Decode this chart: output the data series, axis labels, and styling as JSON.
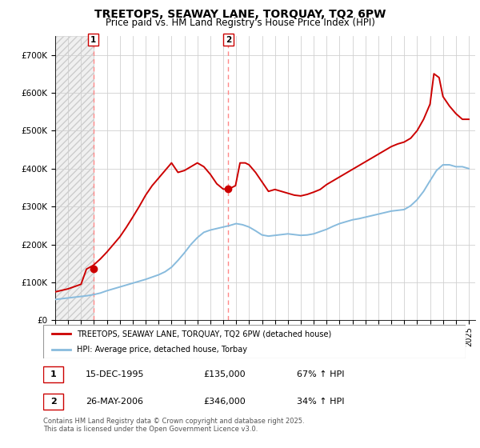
{
  "title": "TREETOPS, SEAWAY LANE, TORQUAY, TQ2 6PW",
  "subtitle": "Price paid vs. HM Land Registry's House Price Index (HPI)",
  "title_fontsize": 10,
  "subtitle_fontsize": 8.5,
  "sale1_price": 135000,
  "sale2_price": 346000,
  "line_color_property": "#cc0000",
  "line_color_hpi": "#88bbdd",
  "marker_color": "#cc0000",
  "legend_label_property": "TREETOPS, SEAWAY LANE, TORQUAY, TQ2 6PW (detached house)",
  "legend_label_hpi": "HPI: Average price, detached house, Torbay",
  "table_row1": [
    "1",
    "15-DEC-1995",
    "£135,000",
    "67% ↑ HPI"
  ],
  "table_row2": [
    "2",
    "26-MAY-2006",
    "£346,000",
    "34% ↑ HPI"
  ],
  "footer": "Contains HM Land Registry data © Crown copyright and database right 2025.\nThis data is licensed under the Open Government Licence v3.0.",
  "ylim_max": 750000,
  "hpi_dates_x": [
    1993.0,
    1993.5,
    1994.0,
    1994.5,
    1995.0,
    1995.5,
    1996.0,
    1996.5,
    1997.0,
    1997.5,
    1998.0,
    1998.5,
    1999.0,
    1999.5,
    2000.0,
    2000.5,
    2001.0,
    2001.5,
    2002.0,
    2002.5,
    2003.0,
    2003.5,
    2004.0,
    2004.5,
    2005.0,
    2005.5,
    2006.0,
    2006.5,
    2007.0,
    2007.5,
    2008.0,
    2008.5,
    2009.0,
    2009.5,
    2010.0,
    2010.5,
    2011.0,
    2011.5,
    2012.0,
    2012.5,
    2013.0,
    2013.5,
    2014.0,
    2014.5,
    2015.0,
    2015.5,
    2016.0,
    2016.5,
    2017.0,
    2017.5,
    2018.0,
    2018.5,
    2019.0,
    2019.5,
    2020.0,
    2020.5,
    2021.0,
    2021.5,
    2022.0,
    2022.5,
    2023.0,
    2023.5,
    2024.0,
    2024.5,
    2025.0
  ],
  "hpi_values": [
    55000,
    57000,
    59000,
    61000,
    63000,
    65000,
    68000,
    72000,
    78000,
    83000,
    88000,
    93000,
    98000,
    103000,
    108000,
    114000,
    120000,
    128000,
    140000,
    158000,
    178000,
    200000,
    218000,
    232000,
    238000,
    242000,
    246000,
    250000,
    255000,
    252000,
    246000,
    236000,
    225000,
    222000,
    224000,
    226000,
    228000,
    226000,
    224000,
    225000,
    228000,
    234000,
    240000,
    248000,
    255000,
    260000,
    265000,
    268000,
    272000,
    276000,
    280000,
    284000,
    288000,
    290000,
    292000,
    302000,
    318000,
    340000,
    368000,
    395000,
    410000,
    410000,
    405000,
    405000,
    400000
  ],
  "prop_dates_x": [
    1993.0,
    1993.5,
    1994.0,
    1994.5,
    1995.0,
    1995.42,
    1995.95,
    1996.5,
    1997.0,
    1997.5,
    1998.0,
    1998.5,
    1999.0,
    1999.5,
    2000.0,
    2000.5,
    2001.0,
    2001.5,
    2002.0,
    2002.5,
    2003.0,
    2003.5,
    2004.0,
    2004.5,
    2005.0,
    2005.5,
    2006.0,
    2006.42,
    2006.95,
    2007.3,
    2007.7,
    2008.0,
    2008.5,
    2009.0,
    2009.5,
    2010.0,
    2010.5,
    2011.0,
    2011.5,
    2012.0,
    2012.5,
    2013.0,
    2013.5,
    2014.0,
    2014.5,
    2015.0,
    2015.5,
    2016.0,
    2016.5,
    2017.0,
    2017.5,
    2018.0,
    2018.5,
    2019.0,
    2019.5,
    2020.0,
    2020.5,
    2021.0,
    2021.5,
    2022.0,
    2022.3,
    2022.7,
    2023.0,
    2023.5,
    2024.0,
    2024.5,
    2025.0
  ],
  "prop_values": [
    75000,
    79000,
    83000,
    89000,
    95000,
    135000,
    145000,
    162000,
    180000,
    200000,
    220000,
    245000,
    272000,
    300000,
    330000,
    355000,
    375000,
    395000,
    415000,
    390000,
    395000,
    405000,
    415000,
    405000,
    385000,
    360000,
    346000,
    346000,
    355000,
    415000,
    415000,
    410000,
    390000,
    365000,
    340000,
    345000,
    340000,
    335000,
    330000,
    328000,
    332000,
    338000,
    345000,
    358000,
    368000,
    378000,
    388000,
    398000,
    408000,
    418000,
    428000,
    438000,
    448000,
    458000,
    465000,
    470000,
    480000,
    500000,
    530000,
    570000,
    650000,
    640000,
    590000,
    565000,
    545000,
    530000,
    530000
  ]
}
